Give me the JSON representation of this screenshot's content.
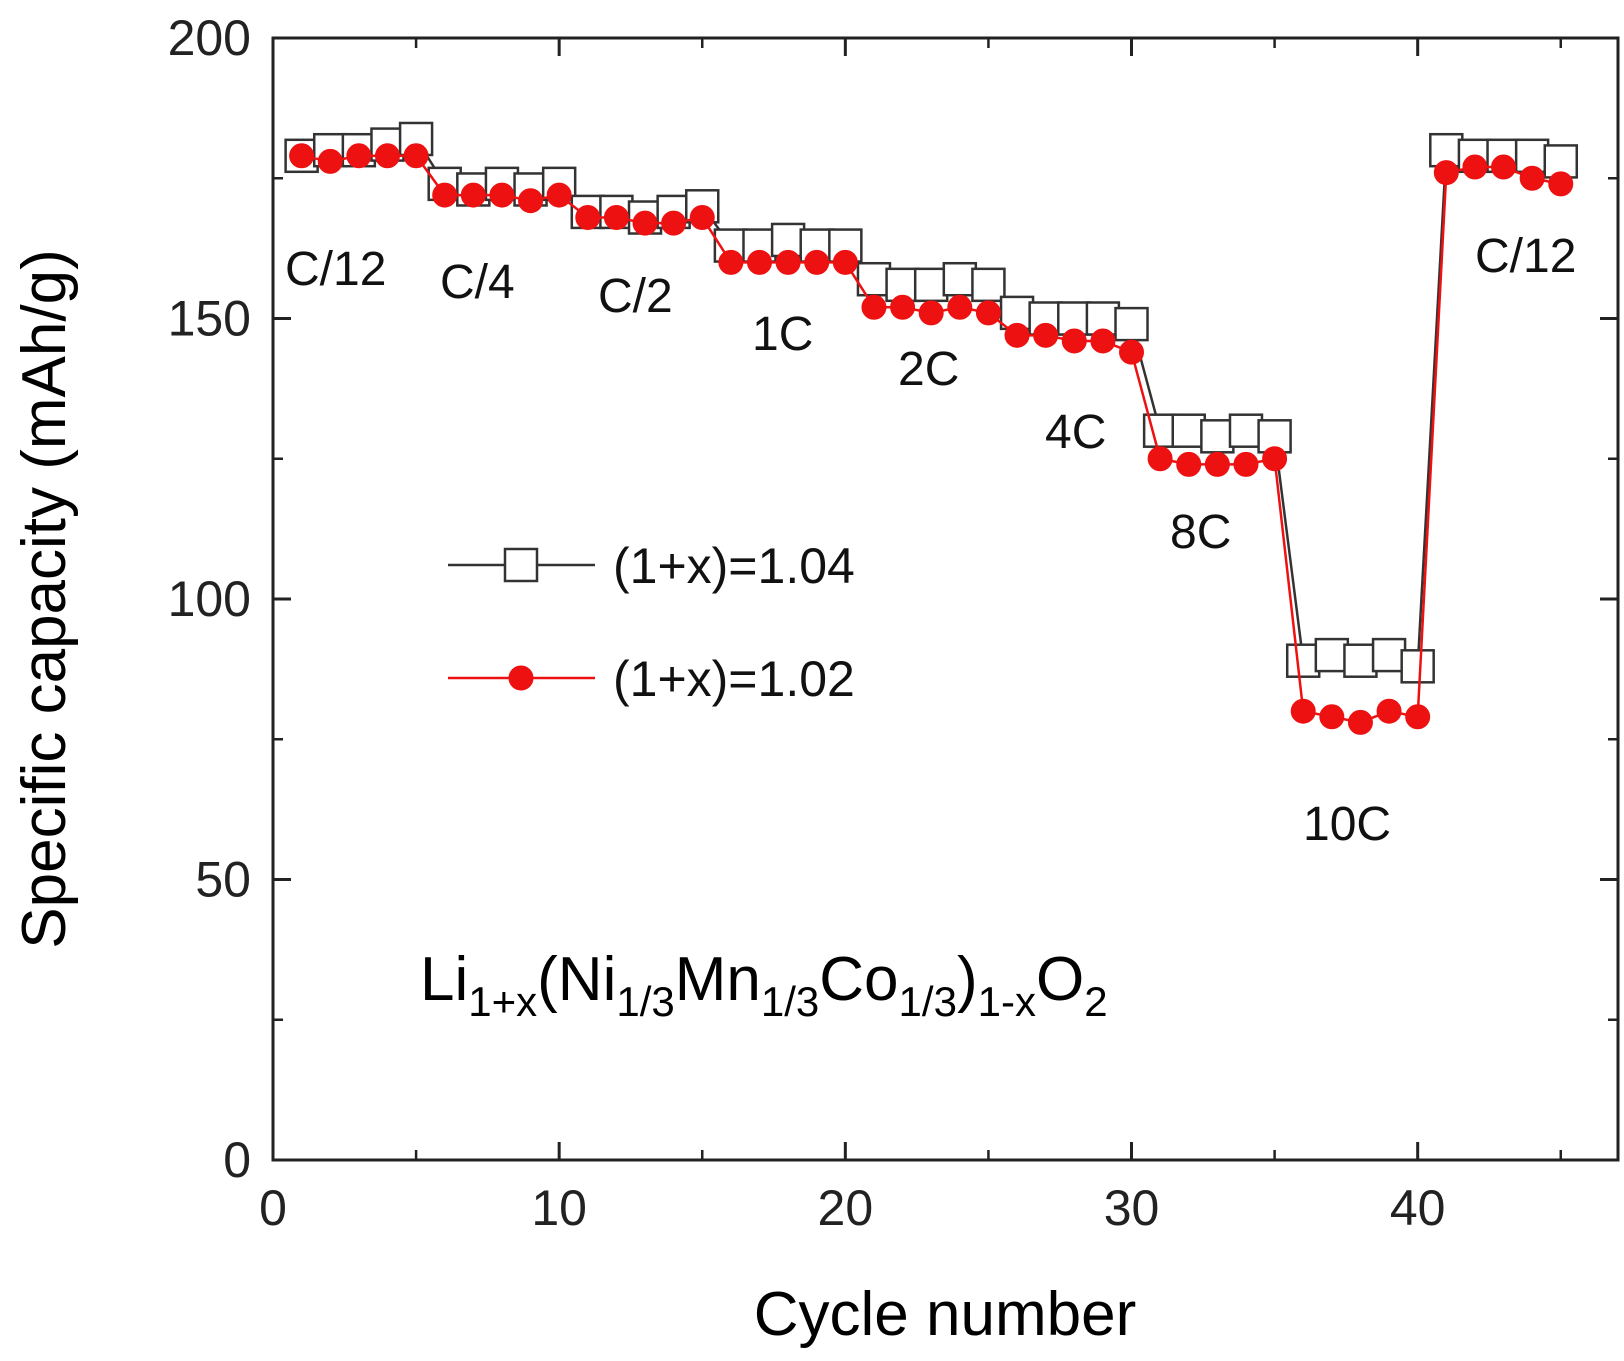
{
  "chart_data": {
    "type": "scatter",
    "title": "",
    "xlabel": "Cycle number",
    "ylabel": "Specific capacity (mAh/g)",
    "xlim": [
      0,
      47
    ],
    "ylim": [
      0,
      200
    ],
    "x_ticks": [
      0,
      10,
      20,
      30,
      40
    ],
    "y_ticks": [
      0,
      50,
      100,
      150,
      200
    ],
    "grid": false,
    "legend_position": "center-left",
    "x": [
      1,
      2,
      3,
      4,
      5,
      6,
      7,
      8,
      9,
      10,
      11,
      12,
      13,
      14,
      15,
      16,
      17,
      18,
      19,
      20,
      21,
      22,
      23,
      24,
      25,
      26,
      27,
      28,
      29,
      30,
      31,
      32,
      33,
      34,
      35,
      36,
      37,
      38,
      39,
      40,
      41,
      42,
      43,
      44,
      45
    ],
    "series": [
      {
        "name": "(1+x)=1.04",
        "marker": "open-square",
        "line_color": "#333333",
        "marker_fill": "#ffffff",
        "marker_stroke": "#333333",
        "values": [
          179,
          180,
          180,
          181,
          182,
          174,
          173,
          174,
          173,
          174,
          169,
          169,
          168,
          169,
          170,
          163,
          163,
          164,
          163,
          163,
          157,
          156,
          156,
          157,
          156,
          151,
          150,
          150,
          150,
          149,
          130,
          130,
          129,
          130,
          129,
          89,
          90,
          89,
          90,
          88,
          180,
          179,
          179,
          179,
          178
        ]
      },
      {
        "name": "(1+x)=1.02",
        "marker": "filled-circle",
        "line_color": "#ee1111",
        "marker_fill": "#ee1111",
        "marker_stroke": "#ee1111",
        "values": [
          179,
          178,
          179,
          179,
          179,
          172,
          172,
          172,
          171,
          172,
          168,
          168,
          167,
          167,
          168,
          160,
          160,
          160,
          160,
          160,
          152,
          152,
          151,
          152,
          151,
          147,
          147,
          146,
          146,
          144,
          125,
          124,
          124,
          124,
          125,
          80,
          79,
          78,
          80,
          79,
          176,
          177,
          177,
          175,
          174
        ]
      }
    ],
    "annotations": [
      "C/12",
      "C/4",
      "C/2",
      "1C",
      "2C",
      "4C",
      "8C",
      "10C",
      "C/12"
    ],
    "formula": {
      "parts": [
        {
          "text": "Li",
          "sub": false
        },
        {
          "text": "1+x",
          "sub": true
        },
        {
          "text": "(Ni",
          "sub": false
        },
        {
          "text": "1/3",
          "sub": true
        },
        {
          "text": "Mn",
          "sub": false
        },
        {
          "text": "1/3",
          "sub": true
        },
        {
          "text": "Co",
          "sub": false
        },
        {
          "text": "1/3",
          "sub": true
        },
        {
          "text": ")",
          "sub": false
        },
        {
          "text": "1-x",
          "sub": true
        },
        {
          "text": "O",
          "sub": false
        },
        {
          "text": "2",
          "sub": true
        }
      ]
    }
  }
}
